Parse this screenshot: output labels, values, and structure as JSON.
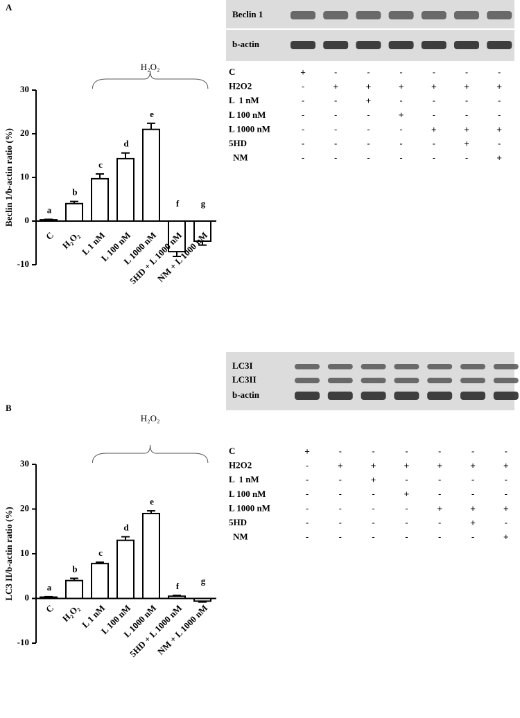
{
  "chart_data": [
    {
      "type": "bar",
      "panel": "A",
      "ylabel": "Beclin 1/b-actin ratio (%)",
      "bracket_label": "H₂O₂",
      "categories": [
        "C",
        "H₂O₂",
        "L 1 nM",
        "L 100 nM",
        "L 1000 nM",
        "5HD + L 1000 nM",
        "NM + L 1000 nM"
      ],
      "values": [
        0.3,
        4,
        9.7,
        14.3,
        21,
        -7,
        -4.6
      ],
      "errors": [
        0.1,
        0.5,
        1.1,
        1.3,
        1.4,
        1.1,
        0.9
      ],
      "annotations": [
        "a",
        "b",
        "c",
        "d",
        "e",
        "f",
        "g"
      ],
      "ylim": [
        -10,
        30
      ],
      "yticks": [
        -10,
        0,
        10,
        20,
        30
      ],
      "color": "#ffffff"
    },
    {
      "type": "bar",
      "panel": "B",
      "ylabel": "LC3 II/b-actin ratio (%)",
      "bracket_label": "H₂O₂",
      "categories": [
        "C",
        "H₂O₂",
        "L 1 nM",
        "L 100 nM",
        "L 1000 nM",
        "5HD + L 1000 nM",
        "NM + L 1000 nM"
      ],
      "values": [
        0.3,
        4,
        7.8,
        13,
        19,
        0.5,
        -0.6
      ],
      "errors": [
        0.1,
        0.5,
        0.3,
        0.8,
        0.6,
        0.2,
        0.2
      ],
      "annotations": [
        "a",
        "b",
        "c",
        "d",
        "e",
        "f",
        "g"
      ],
      "ylim": [
        -10,
        30
      ],
      "yticks": [
        -10,
        0,
        10,
        20,
        30
      ],
      "color": "#ffffff"
    }
  ],
  "blots": [
    {
      "rows": [
        "Beclin 1",
        "b-actin"
      ],
      "table": [
        {
          "label": "C",
          "marks": [
            "+",
            "-",
            "-",
            "-",
            "-",
            "-",
            "-"
          ]
        },
        {
          "label": "H2O2",
          "marks": [
            "-",
            "+",
            "+",
            "+",
            "+",
            "+",
            "+"
          ]
        },
        {
          "label": "L  1 nM",
          "marks": [
            "-",
            "-",
            "+",
            "-",
            "-",
            "-",
            "-"
          ]
        },
        {
          "label": "L 100 nM",
          "marks": [
            "-",
            "-",
            "-",
            "+",
            "-",
            "-",
            "-"
          ]
        },
        {
          "label": "L 1000 nM",
          "marks": [
            "-",
            "-",
            "-",
            "-",
            "+",
            "+",
            "+"
          ]
        },
        {
          "label": "5HD",
          "marks": [
            "-",
            "-",
            "-",
            "-",
            "-",
            "+",
            "-"
          ]
        },
        {
          "label": "NM",
          "marks": [
            "-",
            "-",
            "-",
            "-",
            "-",
            "-",
            "+"
          ]
        }
      ]
    },
    {
      "rows": [
        "LC3I",
        "LC3II",
        "b-actin"
      ],
      "table": [
        {
          "label": "C",
          "marks": [
            "+",
            "-",
            "-",
            "-",
            "-",
            "-",
            "-"
          ]
        },
        {
          "label": "H2O2",
          "marks": [
            "-",
            "+",
            "+",
            "+",
            "+",
            "+",
            "+"
          ]
        },
        {
          "label": "L  1 nM",
          "marks": [
            "-",
            "-",
            "+",
            "-",
            "-",
            "-",
            "-"
          ]
        },
        {
          "label": "L 100 nM",
          "marks": [
            "-",
            "-",
            "-",
            "+",
            "-",
            "-",
            "-"
          ]
        },
        {
          "label": "L 1000 nM",
          "marks": [
            "-",
            "-",
            "-",
            "-",
            "+",
            "+",
            "+"
          ]
        },
        {
          "label": "5HD",
          "marks": [
            "-",
            "-",
            "-",
            "-",
            "-",
            "+",
            "-"
          ]
        },
        {
          "label": "NM",
          "marks": [
            "-",
            "-",
            "-",
            "-",
            "-",
            "-",
            "+"
          ]
        }
      ]
    }
  ]
}
